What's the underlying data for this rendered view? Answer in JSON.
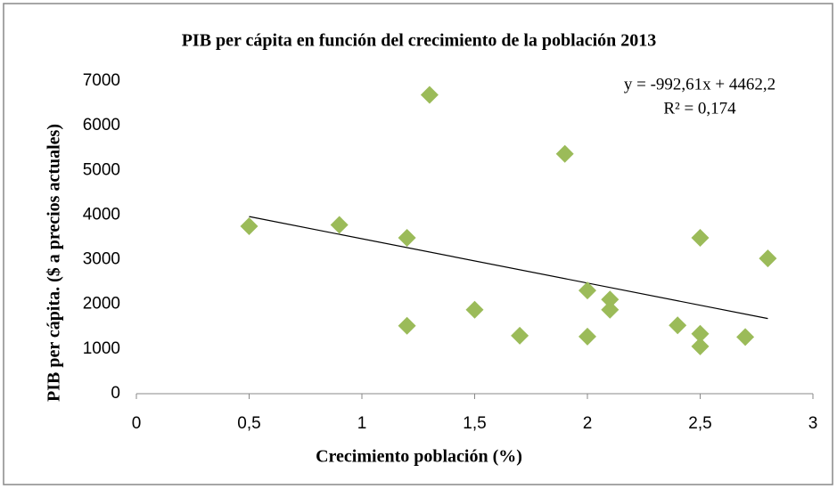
{
  "chart_data": {
    "type": "scatter",
    "title": "PIB per cápita en función del crecimiento de la población 2013",
    "xlabel": "Crecimiento población (%)",
    "ylabel": "PIB per cápita. ($ a precios actuales)",
    "color": "#9bbb59",
    "x": [
      0.5,
      0.9,
      1.2,
      1.2,
      1.3,
      1.5,
      1.7,
      1.9,
      2.0,
      2.0,
      2.1,
      2.1,
      2.4,
      2.5,
      2.5,
      2.5,
      2.7,
      2.8
    ],
    "values": [
      3750,
      3780,
      3490,
      1520,
      6690,
      1880,
      1300,
      5370,
      2310,
      1280,
      2110,
      1880,
      1530,
      3490,
      1340,
      1060,
      1270,
      3030
    ],
    "xlim": [
      0,
      3
    ],
    "xticks": [
      0,
      {
        "value": 0.5,
        "label": "0,5"
      },
      1,
      {
        "value": 1.5,
        "label": "1,5"
      },
      2,
      {
        "value": 2.5,
        "label": "2,5"
      },
      3
    ],
    "ylim": [
      0,
      7000
    ],
    "yticks": [
      0,
      1000,
      2000,
      3000,
      4000,
      5000,
      6000,
      7000
    ],
    "trendline": {
      "slope": -992.61,
      "intercept": 4462.2,
      "color": "#000000",
      "equation": "y = -992,61x + 4462,2",
      "r2_label": "R² = 0,174"
    }
  }
}
